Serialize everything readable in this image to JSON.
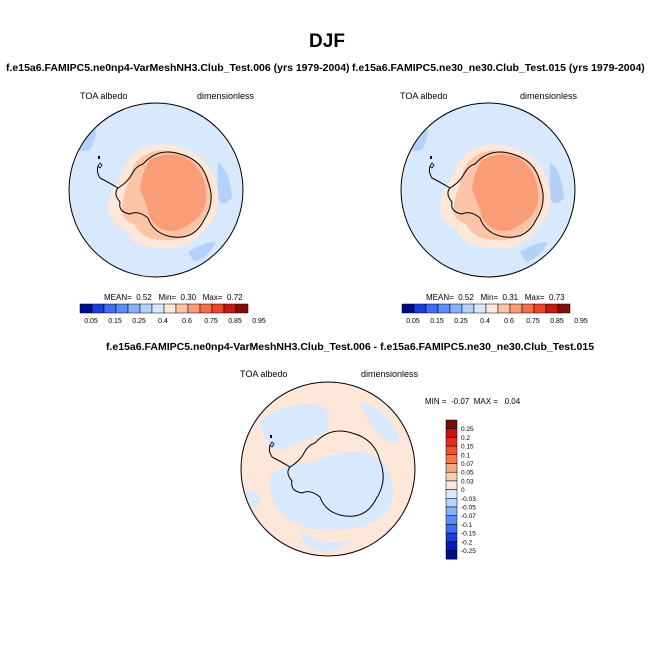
{
  "page": {
    "title": "DJF"
  },
  "panels": [
    {
      "title": "f.e15a6.FAMIPC5.ne0np4-VarMeshNH3.Club_Test.006 (yrs 1979-2004)",
      "variable": "TOA albedo",
      "units": "dimensionless",
      "stats": {
        "mean_label": "MEAN=",
        "mean": "0.52",
        "min_label": "Min=",
        "min": "0.30",
        "max_label": "Max=",
        "max": "0.72"
      }
    },
    {
      "title": "f.e15a6.FAMIPC5.ne30_ne30.Club_Test.015 (yrs 1979-2004)",
      "variable": "TOA albedo",
      "units": "dimensionless",
      "stats": {
        "mean_label": "MEAN=",
        "mean": "0.52",
        "min_label": "Min=",
        "min": "0.31",
        "max_label": "Max=",
        "max": "0.73"
      }
    },
    {
      "title": "f.e15a6.FAMIPC5.ne0np4-VarMeshNH3.Club_Test.006 - f.e15a6.FAMIPC5.ne30_ne30.Club_Test.015",
      "variable": "TOA albedo",
      "units": "dimensionless",
      "stats": {
        "min_label": "MIN =",
        "min": "-0.07",
        "max_label": "MAX =",
        "max": "0.04"
      }
    }
  ],
  "colorbars": {
    "absolute": {
      "colors": [
        "#000e8e",
        "#1c3cdb",
        "#3f6ef0",
        "#5b8ef5",
        "#87b1f8",
        "#b4d1fa",
        "#d9e9fd",
        "#fde7d8",
        "#fcc4a6",
        "#f99d78",
        "#f26f48",
        "#e8452a",
        "#c21c14",
        "#801008"
      ],
      "labels": [
        "0.05",
        "0.15",
        "0.25",
        "0.4",
        "0.6",
        "0.75",
        "0.85",
        "0.95"
      ]
    },
    "difference": {
      "colors": [
        "#7e0b07",
        "#c0160f",
        "#e4301d",
        "#f2532e",
        "#f57a52",
        "#f9a783",
        "#fcd0b5",
        "#fde7d8",
        "#d9e9fd",
        "#b4d1fa",
        "#87b1f8",
        "#5b8ef5",
        "#3f6ef0",
        "#1c3cdb",
        "#0a1cb0",
        "#000e8e"
      ],
      "labels": [
        "0.25",
        "0.2",
        "0.15",
        "0.1",
        "0.07",
        "0.05",
        "0.03",
        "0",
        "-0.03",
        "-0.05",
        "-0.07",
        "-0.1",
        "-0.15",
        "-0.2",
        "-0.25"
      ]
    }
  },
  "map_colors": {
    "ocean_light": "#d9e9fd",
    "ocean_medium": "#b4d1fa",
    "land_light": "#fde7d8",
    "land_medium": "#fcc4a6",
    "land_strong": "#f99d78",
    "coast": "#000000"
  }
}
